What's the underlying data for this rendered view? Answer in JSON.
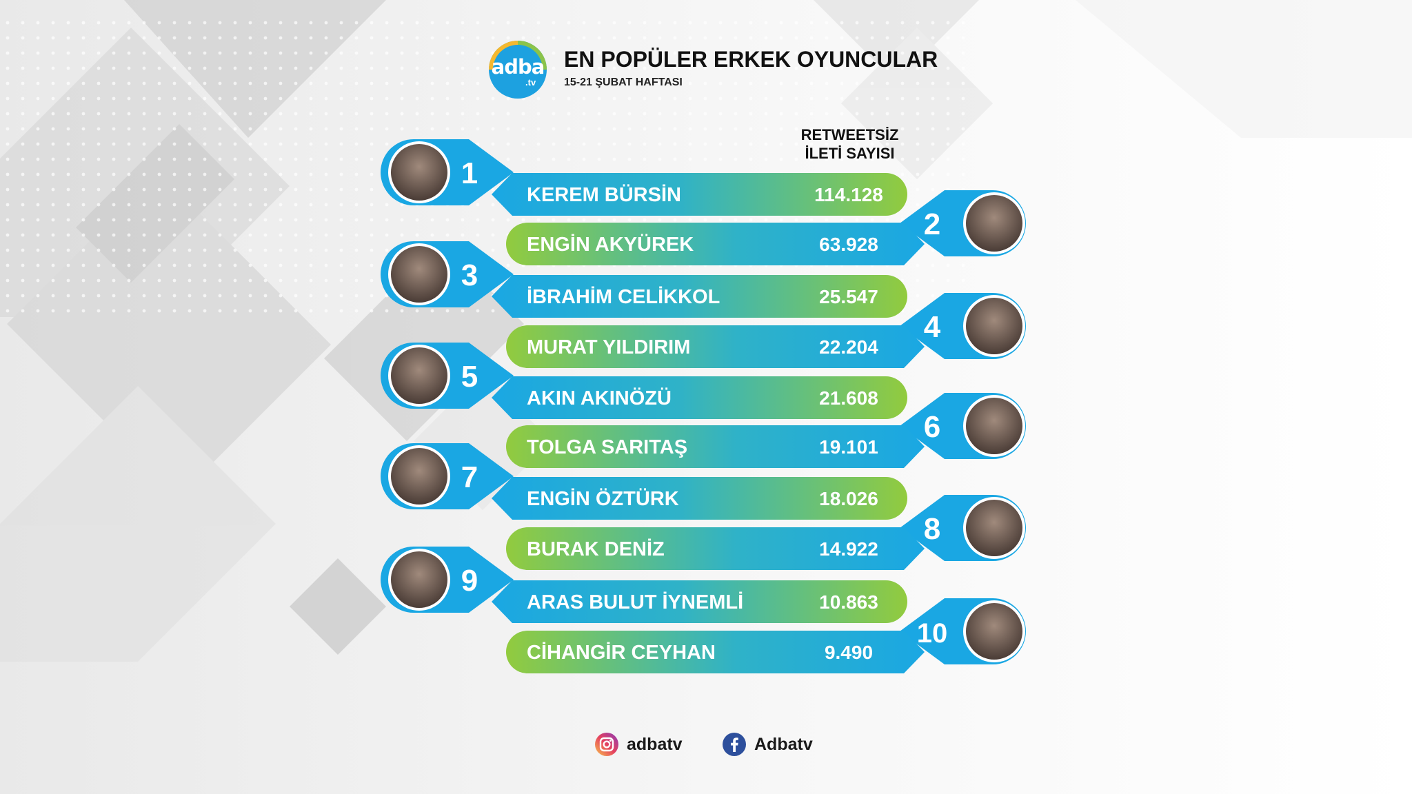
{
  "brand": {
    "logo_text": "adba",
    "logo_tld": ".tv",
    "logo_colors": [
      "#f5b82e",
      "#8bc34a",
      "#1da1e0"
    ]
  },
  "header": {
    "title": "EN POPÜLER ERKEK OYUNCULAR",
    "subtitle": "15-21 ŞUBAT HAFTASI"
  },
  "column_header": {
    "line1": "RETWEETSİZ",
    "line2": "İLETİ SAYISI"
  },
  "chart_data": {
    "type": "bar",
    "title": "EN POPÜLER ERKEK OYUNCULAR",
    "subtitle": "15-21 ŞUBAT HAFTASI",
    "value_label": "RETWEETSİZ İLETİ SAYISI",
    "ranks": [
      "1",
      "2",
      "3",
      "4",
      "5",
      "6",
      "7",
      "8",
      "9",
      "10"
    ],
    "categories": [
      "KEREM BÜRSİN",
      "ENGİN AKYÜREK",
      "İBRAHİM CELİKKOL",
      "MURAT YILDIRIM",
      "AKIN AKINÖZÜ",
      "TOLGA SARITAŞ",
      "ENGİN ÖZTÜRK",
      "BURAK DENİZ",
      "ARAS BULUT İYNEMLİ",
      "CİHANGİR CEYHAN"
    ],
    "values": [
      114128,
      63928,
      25547,
      22204,
      21608,
      19101,
      18026,
      14922,
      10863,
      9490
    ],
    "value_labels": [
      "114.128",
      "63.928",
      "25.547",
      "22.204",
      "21.608",
      "19.101",
      "18.026",
      "14.922",
      "10.863",
      "9.490"
    ],
    "colors": {
      "bar_blue": "#1aa7e3",
      "bar_green": "#8fca3e",
      "tab_blue": "#1aa7e3"
    }
  },
  "social": {
    "instagram": "adbatv",
    "facebook": "Adbatv",
    "instagram_icon": "instagram-icon",
    "facebook_icon": "facebook-icon"
  }
}
